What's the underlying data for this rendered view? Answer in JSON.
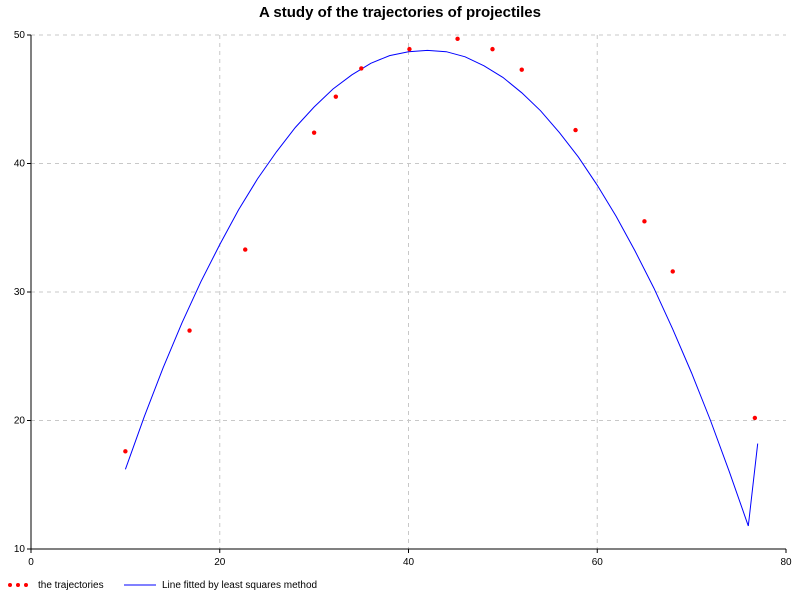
{
  "chart_data": {
    "type": "scatter",
    "title": "A study of the trajectories of projectiles",
    "xlabel": "",
    "ylabel": "",
    "xlim": [
      0,
      80
    ],
    "ylim": [
      10,
      50
    ],
    "xticks": [
      0,
      20,
      40,
      60,
      80
    ],
    "yticks": [
      10,
      20,
      30,
      40,
      50
    ],
    "grid": true,
    "legend_position": "bottom-left",
    "series": [
      {
        "name": "the trajectories",
        "kind": "scatter",
        "color": "#ff0000",
        "points": [
          [
            10.0,
            17.6
          ],
          [
            16.8,
            27.0
          ],
          [
            22.7,
            33.3
          ],
          [
            30.0,
            42.4
          ],
          [
            32.3,
            45.2
          ],
          [
            35.0,
            47.4
          ],
          [
            40.1,
            48.9
          ],
          [
            45.2,
            49.7
          ],
          [
            48.9,
            48.9
          ],
          [
            52.0,
            47.3
          ],
          [
            57.7,
            42.6
          ],
          [
            65.0,
            35.5
          ],
          [
            68.0,
            31.6
          ],
          [
            76.7,
            20.2
          ]
        ]
      },
      {
        "name": "Line fitted by least squares method",
        "kind": "line",
        "color": "#0000ff",
        "points": [
          [
            10.0,
            16.2
          ],
          [
            12.0,
            20.3
          ],
          [
            14.0,
            24.1
          ],
          [
            16.0,
            27.6
          ],
          [
            18.0,
            30.8
          ],
          [
            20.0,
            33.7
          ],
          [
            22.0,
            36.4
          ],
          [
            24.0,
            38.8
          ],
          [
            26.0,
            40.9
          ],
          [
            28.0,
            42.8
          ],
          [
            30.0,
            44.4
          ],
          [
            32.0,
            45.8
          ],
          [
            34.0,
            46.9
          ],
          [
            36.0,
            47.8
          ],
          [
            38.0,
            48.4
          ],
          [
            40.0,
            48.7
          ],
          [
            42.0,
            48.8
          ],
          [
            44.0,
            48.7
          ],
          [
            46.0,
            48.3
          ],
          [
            48.0,
            47.6
          ],
          [
            50.0,
            46.7
          ],
          [
            52.0,
            45.5
          ],
          [
            54.0,
            44.1
          ],
          [
            56.0,
            42.4
          ],
          [
            58.0,
            40.5
          ],
          [
            60.0,
            38.3
          ],
          [
            62.0,
            35.9
          ],
          [
            64.0,
            33.2
          ],
          [
            66.0,
            30.3
          ],
          [
            68.0,
            27.1
          ],
          [
            70.0,
            23.7
          ],
          [
            72.0,
            20.0
          ],
          [
            74.0,
            16.0
          ],
          [
            76.0,
            11.8
          ],
          [
            77.0,
            18.2
          ]
        ]
      }
    ]
  }
}
